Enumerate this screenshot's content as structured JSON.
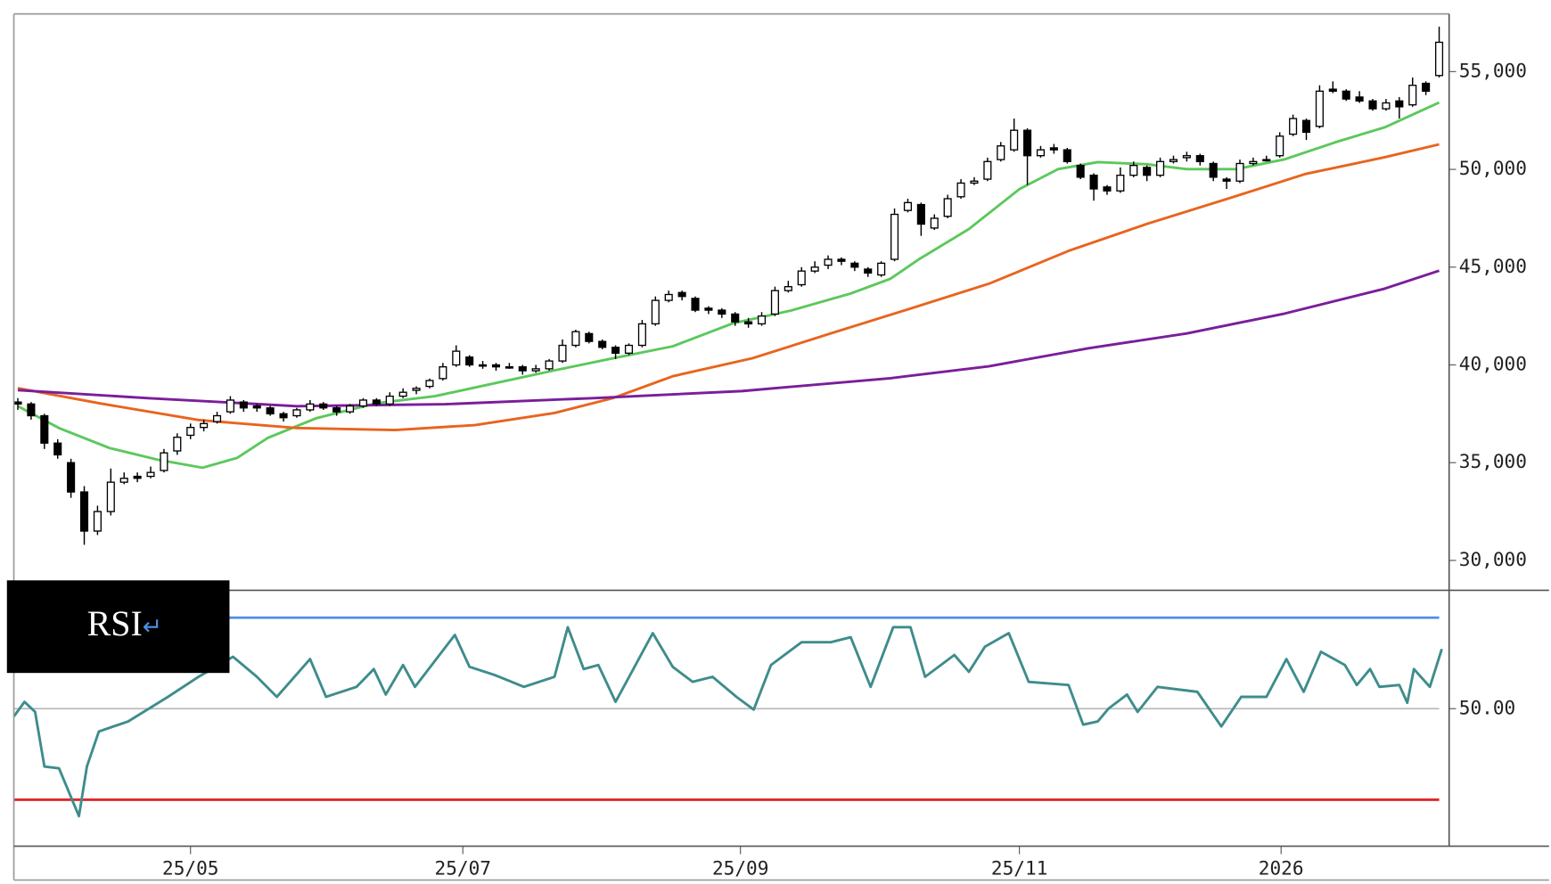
{
  "chart_data": [
    {
      "type": "candlestick",
      "up_color": "#ffffff",
      "down_color": "#000000",
      "xlim": [
        -0.3,
        107.75
      ],
      "ylim": [
        28470,
        57950
      ],
      "yticks": [
        {
          "value": 30000,
          "label": "30,000"
        },
        {
          "value": 35000,
          "label": "35,000"
        },
        {
          "value": 40000,
          "label": "40,000"
        },
        {
          "value": 45000,
          "label": "45,000"
        },
        {
          "value": 50000,
          "label": "50,000"
        },
        {
          "value": 55000,
          "label": "55,000"
        }
      ],
      "ohlc": [
        [
          38100,
          38300,
          37700,
          38000
        ],
        [
          38000,
          38100,
          37200,
          37400
        ],
        [
          37400,
          37500,
          35700,
          36000
        ],
        [
          36000,
          36200,
          35200,
          35400
        ],
        [
          35000,
          35200,
          33200,
          33500
        ],
        [
          33500,
          33800,
          30800,
          31500
        ],
        [
          31500,
          32800,
          31300,
          32500
        ],
        [
          32500,
          34700,
          32300,
          34000
        ],
        [
          34000,
          34500,
          33900,
          34200
        ],
        [
          34300,
          34500,
          34000,
          34200
        ],
        [
          34300,
          34800,
          34200,
          34500
        ],
        [
          34600,
          35700,
          34500,
          35500
        ],
        [
          35600,
          36500,
          35400,
          36300
        ],
        [
          36400,
          37000,
          36200,
          36800
        ],
        [
          36800,
          37200,
          36600,
          37000
        ],
        [
          37100,
          37600,
          37000,
          37400
        ],
        [
          37600,
          38400,
          37500,
          38200
        ],
        [
          38100,
          38200,
          37600,
          37800
        ],
        [
          37900,
          38000,
          37600,
          37800
        ],
        [
          37800,
          37900,
          37400,
          37500
        ],
        [
          37500,
          37600,
          37100,
          37300
        ],
        [
          37400,
          37800,
          37300,
          37700
        ],
        [
          37700,
          38200,
          37600,
          38000
        ],
        [
          38000,
          38100,
          37700,
          37800
        ],
        [
          37800,
          37900,
          37400,
          37600
        ],
        [
          37600,
          38000,
          37500,
          37900
        ],
        [
          37900,
          38300,
          37800,
          38200
        ],
        [
          38200,
          38300,
          37900,
          38000
        ],
        [
          38000,
          38600,
          37900,
          38400
        ],
        [
          38400,
          38800,
          38300,
          38600
        ],
        [
          38700,
          38900,
          38500,
          38800
        ],
        [
          38900,
          39300,
          38800,
          39200
        ],
        [
          39300,
          40100,
          39200,
          39900
        ],
        [
          40000,
          41000,
          39900,
          40700
        ],
        [
          40400,
          40500,
          39900,
          40000
        ],
        [
          40000,
          40200,
          39800,
          40000
        ],
        [
          40000,
          40100,
          39700,
          39900
        ],
        [
          39900,
          40100,
          39800,
          39900
        ],
        [
          39900,
          40000,
          39500,
          39700
        ],
        [
          39700,
          40000,
          39600,
          39800
        ],
        [
          39800,
          40300,
          39700,
          40200
        ],
        [
          40200,
          41300,
          40100,
          41000
        ],
        [
          41000,
          41800,
          40900,
          41700
        ],
        [
          41600,
          41700,
          41100,
          41200
        ],
        [
          41200,
          41300,
          40800,
          40900
        ],
        [
          40900,
          41000,
          40300,
          40600
        ],
        [
          40600,
          41100,
          40500,
          41000
        ],
        [
          41000,
          42300,
          40900,
          42100
        ],
        [
          42100,
          43500,
          42000,
          43300
        ],
        [
          43300,
          43800,
          43200,
          43600
        ],
        [
          43700,
          43800,
          43300,
          43500
        ],
        [
          43400,
          43500,
          42700,
          42800
        ],
        [
          42900,
          43000,
          42600,
          42800
        ],
        [
          42800,
          42900,
          42400,
          42600
        ],
        [
          42600,
          42700,
          42000,
          42200
        ],
        [
          42200,
          42400,
          41900,
          42100
        ],
        [
          42100,
          42700,
          42000,
          42500
        ],
        [
          42600,
          44000,
          42500,
          43800
        ],
        [
          43800,
          44300,
          43700,
          44000
        ],
        [
          44100,
          45000,
          44000,
          44800
        ],
        [
          44800,
          45300,
          44700,
          45000
        ],
        [
          45100,
          45600,
          44900,
          45400
        ],
        [
          45400,
          45500,
          45100,
          45300
        ],
        [
          45200,
          45300,
          44800,
          45000
        ],
        [
          44900,
          45000,
          44500,
          44700
        ],
        [
          44600,
          45300,
          44500,
          45200
        ],
        [
          45400,
          48000,
          45300,
          47700
        ],
        [
          47900,
          48500,
          47800,
          48300
        ],
        [
          48200,
          48300,
          46600,
          47200
        ],
        [
          47000,
          47700,
          46900,
          47500
        ],
        [
          47600,
          48700,
          47500,
          48500
        ],
        [
          48600,
          49500,
          48500,
          49300
        ],
        [
          49300,
          49600,
          49200,
          49400
        ],
        [
          49500,
          50600,
          49400,
          50400
        ],
        [
          50500,
          51400,
          50400,
          51200
        ],
        [
          51000,
          52600,
          50900,
          52000
        ],
        [
          52000,
          52100,
          49200,
          50700
        ],
        [
          50700,
          51200,
          50600,
          51000
        ],
        [
          51100,
          51300,
          50800,
          51000
        ],
        [
          51000,
          51100,
          50300,
          50400
        ],
        [
          50200,
          50300,
          49500,
          49600
        ],
        [
          49700,
          49800,
          48400,
          49000
        ],
        [
          49100,
          49200,
          48700,
          48900
        ],
        [
          48900,
          50100,
          48800,
          49700
        ],
        [
          49700,
          50400,
          49600,
          50200
        ],
        [
          50100,
          50200,
          49400,
          49700
        ],
        [
          49700,
          50600,
          49600,
          50400
        ],
        [
          50400,
          50700,
          50300,
          50500
        ],
        [
          50600,
          50900,
          50400,
          50700
        ],
        [
          50700,
          50800,
          50200,
          50400
        ],
        [
          50300,
          50400,
          49400,
          49600
        ],
        [
          49500,
          49600,
          49000,
          49400
        ],
        [
          49400,
          50500,
          49300,
          50300
        ],
        [
          50300,
          50600,
          50200,
          50400
        ],
        [
          50500,
          50700,
          50400,
          50500
        ],
        [
          50700,
          51900,
          50600,
          51700
        ],
        [
          51800,
          52800,
          51700,
          52600
        ],
        [
          52500,
          52600,
          51500,
          51900
        ],
        [
          52200,
          54300,
          52100,
          54000
        ],
        [
          54100,
          54500,
          53900,
          54000
        ],
        [
          54000,
          54100,
          53500,
          53600
        ],
        [
          53700,
          54000,
          53400,
          53500
        ],
        [
          53500,
          53600,
          53000,
          53100
        ],
        [
          53100,
          53600,
          53000,
          53400
        ],
        [
          53500,
          53700,
          52600,
          53200
        ],
        [
          53300,
          54700,
          53200,
          54300
        ],
        [
          54400,
          54500,
          53800,
          54000
        ],
        [
          54800,
          57300,
          54700,
          56500
        ]
      ],
      "series": [
        {
          "color": "#5cc85c",
          "x": [
            0,
            3.1,
            6.9,
            10.6,
            13.9,
            16.5,
            18.8,
            22.5,
            27,
            31.4,
            35.9,
            40.4,
            44.8,
            49.3,
            53.8,
            58.2,
            62.7,
            65.7,
            67.9,
            71.6,
            75.4,
            78.3,
            81.3,
            85,
            88,
            91.7,
            95.4,
            99.2,
            102.9,
            107
          ],
          "values": [
            37890,
            36770,
            35750,
            35140,
            34740,
            35240,
            36260,
            37280,
            38040,
            38400,
            39060,
            39720,
            40340,
            40950,
            42120,
            42780,
            43650,
            44410,
            45430,
            46950,
            48990,
            50010,
            50370,
            50260,
            50010,
            50010,
            50520,
            51390,
            52150,
            53420
          ]
        },
        {
          "color": "#e8641e",
          "x": [
            0,
            6.1,
            13.6,
            21,
            28.4,
            34.4,
            40.4,
            44.8,
            49.3,
            55.3,
            61.2,
            67.2,
            73.1,
            79.1,
            85,
            91,
            96.9,
            102.9,
            107
          ],
          "values": [
            38810,
            38040,
            37180,
            36770,
            36670,
            36920,
            37540,
            38300,
            39420,
            40340,
            41610,
            42880,
            44150,
            45830,
            47210,
            48480,
            49760,
            50620,
            51280
          ]
        },
        {
          "color": "#7a1e9a",
          "x": [
            0,
            9.8,
            21,
            32.2,
            43.3,
            54.5,
            65.7,
            73.1,
            80.6,
            88,
            95.4,
            102.9,
            107
          ],
          "values": [
            38710,
            38300,
            37890,
            37990,
            38300,
            38660,
            39320,
            39930,
            40850,
            41610,
            42630,
            43900,
            44820
          ]
        }
      ]
    },
    {
      "type": "line",
      "title": "RSI",
      "title_mark": "↵",
      "xlim": [
        -0.3,
        107.75
      ],
      "ylim": [
        19.8,
        76
      ],
      "yticks": [
        {
          "value": 50,
          "label": "50.00"
        }
      ],
      "xticks": [
        {
          "value": 13,
          "label": "25/05"
        },
        {
          "value": 33.5,
          "label": "25/07"
        },
        {
          "value": 54.4,
          "label": "25/09"
        },
        {
          "value": 75.4,
          "label": "25/11"
        },
        {
          "value": 95.1,
          "label": "2026"
        }
      ],
      "ref_lines": [
        {
          "value": 70,
          "color": "#4a8fe8"
        },
        {
          "value": 30,
          "color": "#e02828"
        }
      ],
      "series": [
        {
          "color": "#3f8c8c",
          "x": [
            -0.3,
            0.5,
            1.3,
            2,
            3.1,
            4.6,
            5.2,
            6.1,
            8.3,
            11.3,
            13.6,
            16.2,
            18,
            19.5,
            22,
            23.2,
            25.5,
            26.8,
            27.7,
            29,
            29.9,
            32.9,
            34,
            35.9,
            38.1,
            40.4,
            41.4,
            42.6,
            43.7,
            45,
            47.8,
            49.3,
            50.8,
            52.3,
            54.1,
            55.4,
            56.7,
            59,
            61.2,
            62.7,
            64.2,
            65.9,
            67.2,
            68.3,
            70.5,
            71.6,
            72.8,
            74.6,
            76.1,
            79.1,
            80.2,
            81.3,
            82.1,
            83.5,
            84.3,
            85.8,
            88.8,
            90.6,
            92.1,
            94,
            95.5,
            96.8,
            98.1,
            99.9,
            100.8,
            101.8,
            102.5,
            104,
            104.6,
            105.1,
            106.3,
            107.2
          ],
          "values": [
            48.3,
            51.5,
            49.3,
            37.3,
            36.9,
            26.4,
            37.3,
            45.0,
            47.2,
            52.6,
            57.0,
            61.4,
            57.0,
            52.6,
            60.9,
            52.6,
            54.8,
            58.7,
            53.1,
            59.6,
            54.8,
            66.2,
            59.2,
            57.4,
            54.8,
            57.0,
            67.9,
            58.7,
            59.6,
            51.5,
            66.6,
            59.2,
            55.9,
            57.0,
            52.6,
            49.8,
            59.6,
            64.6,
            64.6,
            65.7,
            54.8,
            67.9,
            67.9,
            57.0,
            61.8,
            58.1,
            63.6,
            66.6,
            55.9,
            55.2,
            46.5,
            47.2,
            50.0,
            53.1,
            49.3,
            54.8,
            53.7,
            46.1,
            52.6,
            52.6,
            60.9,
            53.7,
            62.5,
            59.6,
            55.2,
            58.7,
            54.8,
            55.2,
            51.3,
            58.7,
            54.8,
            63.1
          ]
        }
      ]
    }
  ]
}
